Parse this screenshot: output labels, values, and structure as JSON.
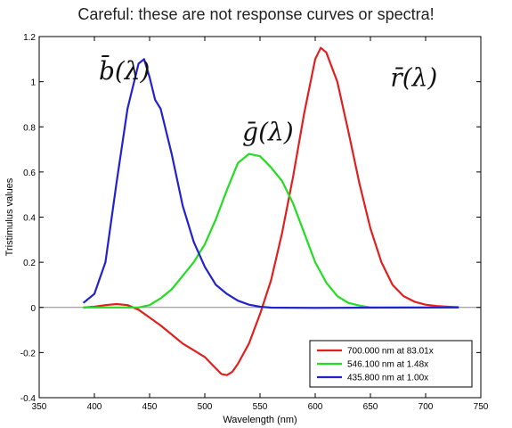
{
  "chart_data": {
    "type": "line",
    "title": "Careful: these are not response curves or spectra!",
    "xlabel": "Wavelength (nm)",
    "ylabel": "Tristimulus values",
    "xlim": [
      350,
      750
    ],
    "ylim": [
      -0.4,
      1.2
    ],
    "xticks": [
      350,
      400,
      450,
      500,
      550,
      600,
      650,
      700,
      750
    ],
    "yticks": [
      -0.4,
      -0.2,
      0,
      0.2,
      0.4,
      0.6,
      0.8,
      1,
      1.2
    ],
    "ytick_labels": [
      "-0.4",
      "-0.2",
      "0",
      "0.2",
      "0.4",
      "0.6",
      "0.8",
      "1",
      "1.2"
    ],
    "legend_position": "bottom-right",
    "grid": false,
    "zero_line": true,
    "series": [
      {
        "name": "700.000 nm at 83.01x",
        "color": "#e02020",
        "curve_label": "r̄(λ)",
        "points": [
          [
            390,
            0.0
          ],
          [
            400,
            0.003
          ],
          [
            410,
            0.01
          ],
          [
            420,
            0.015
          ],
          [
            430,
            0.01
          ],
          [
            440,
            -0.01
          ],
          [
            450,
            -0.045
          ],
          [
            460,
            -0.08
          ],
          [
            470,
            -0.12
          ],
          [
            480,
            -0.16
          ],
          [
            490,
            -0.19
          ],
          [
            500,
            -0.22
          ],
          [
            510,
            -0.27
          ],
          [
            515,
            -0.295
          ],
          [
            520,
            -0.3
          ],
          [
            525,
            -0.285
          ],
          [
            530,
            -0.25
          ],
          [
            540,
            -0.16
          ],
          [
            550,
            -0.03
          ],
          [
            560,
            0.12
          ],
          [
            570,
            0.33
          ],
          [
            580,
            0.58
          ],
          [
            590,
            0.86
          ],
          [
            600,
            1.1
          ],
          [
            605,
            1.15
          ],
          [
            610,
            1.13
          ],
          [
            620,
            1.0
          ],
          [
            630,
            0.78
          ],
          [
            640,
            0.55
          ],
          [
            650,
            0.35
          ],
          [
            660,
            0.2
          ],
          [
            670,
            0.1
          ],
          [
            680,
            0.05
          ],
          [
            690,
            0.025
          ],
          [
            700,
            0.012
          ],
          [
            710,
            0.006
          ],
          [
            720,
            0.003
          ],
          [
            730,
            0.001
          ]
        ]
      },
      {
        "name": "546.100 nm at  1.48x",
        "color": "#22dd22",
        "curve_label": "ḡ(λ)",
        "points": [
          [
            390,
            0.0
          ],
          [
            420,
            0.0
          ],
          [
            440,
            0.0
          ],
          [
            450,
            0.01
          ],
          [
            460,
            0.04
          ],
          [
            470,
            0.08
          ],
          [
            480,
            0.14
          ],
          [
            490,
            0.2
          ],
          [
            500,
            0.28
          ],
          [
            510,
            0.39
          ],
          [
            520,
            0.52
          ],
          [
            530,
            0.64
          ],
          [
            540,
            0.68
          ],
          [
            550,
            0.67
          ],
          [
            560,
            0.62
          ],
          [
            570,
            0.56
          ],
          [
            580,
            0.46
          ],
          [
            590,
            0.33
          ],
          [
            600,
            0.2
          ],
          [
            610,
            0.11
          ],
          [
            620,
            0.05
          ],
          [
            630,
            0.02
          ],
          [
            640,
            0.008
          ],
          [
            650,
            0.0
          ],
          [
            730,
            0.0
          ]
        ]
      },
      {
        "name": "435.800 nm at  1.00x",
        "color": "#2222cc",
        "curve_label": "b̄(λ)",
        "points": [
          [
            390,
            0.02
          ],
          [
            400,
            0.06
          ],
          [
            410,
            0.2
          ],
          [
            420,
            0.55
          ],
          [
            430,
            0.88
          ],
          [
            440,
            1.08
          ],
          [
            445,
            1.1
          ],
          [
            450,
            1.02
          ],
          [
            455,
            0.92
          ],
          [
            460,
            0.88
          ],
          [
            470,
            0.68
          ],
          [
            480,
            0.45
          ],
          [
            490,
            0.29
          ],
          [
            500,
            0.18
          ],
          [
            510,
            0.1
          ],
          [
            520,
            0.06
          ],
          [
            530,
            0.03
          ],
          [
            540,
            0.012
          ],
          [
            550,
            0.003
          ],
          [
            560,
            -0.001
          ],
          [
            600,
            -0.002
          ],
          [
            650,
            -0.001
          ],
          [
            730,
            0.0
          ]
        ]
      }
    ]
  }
}
